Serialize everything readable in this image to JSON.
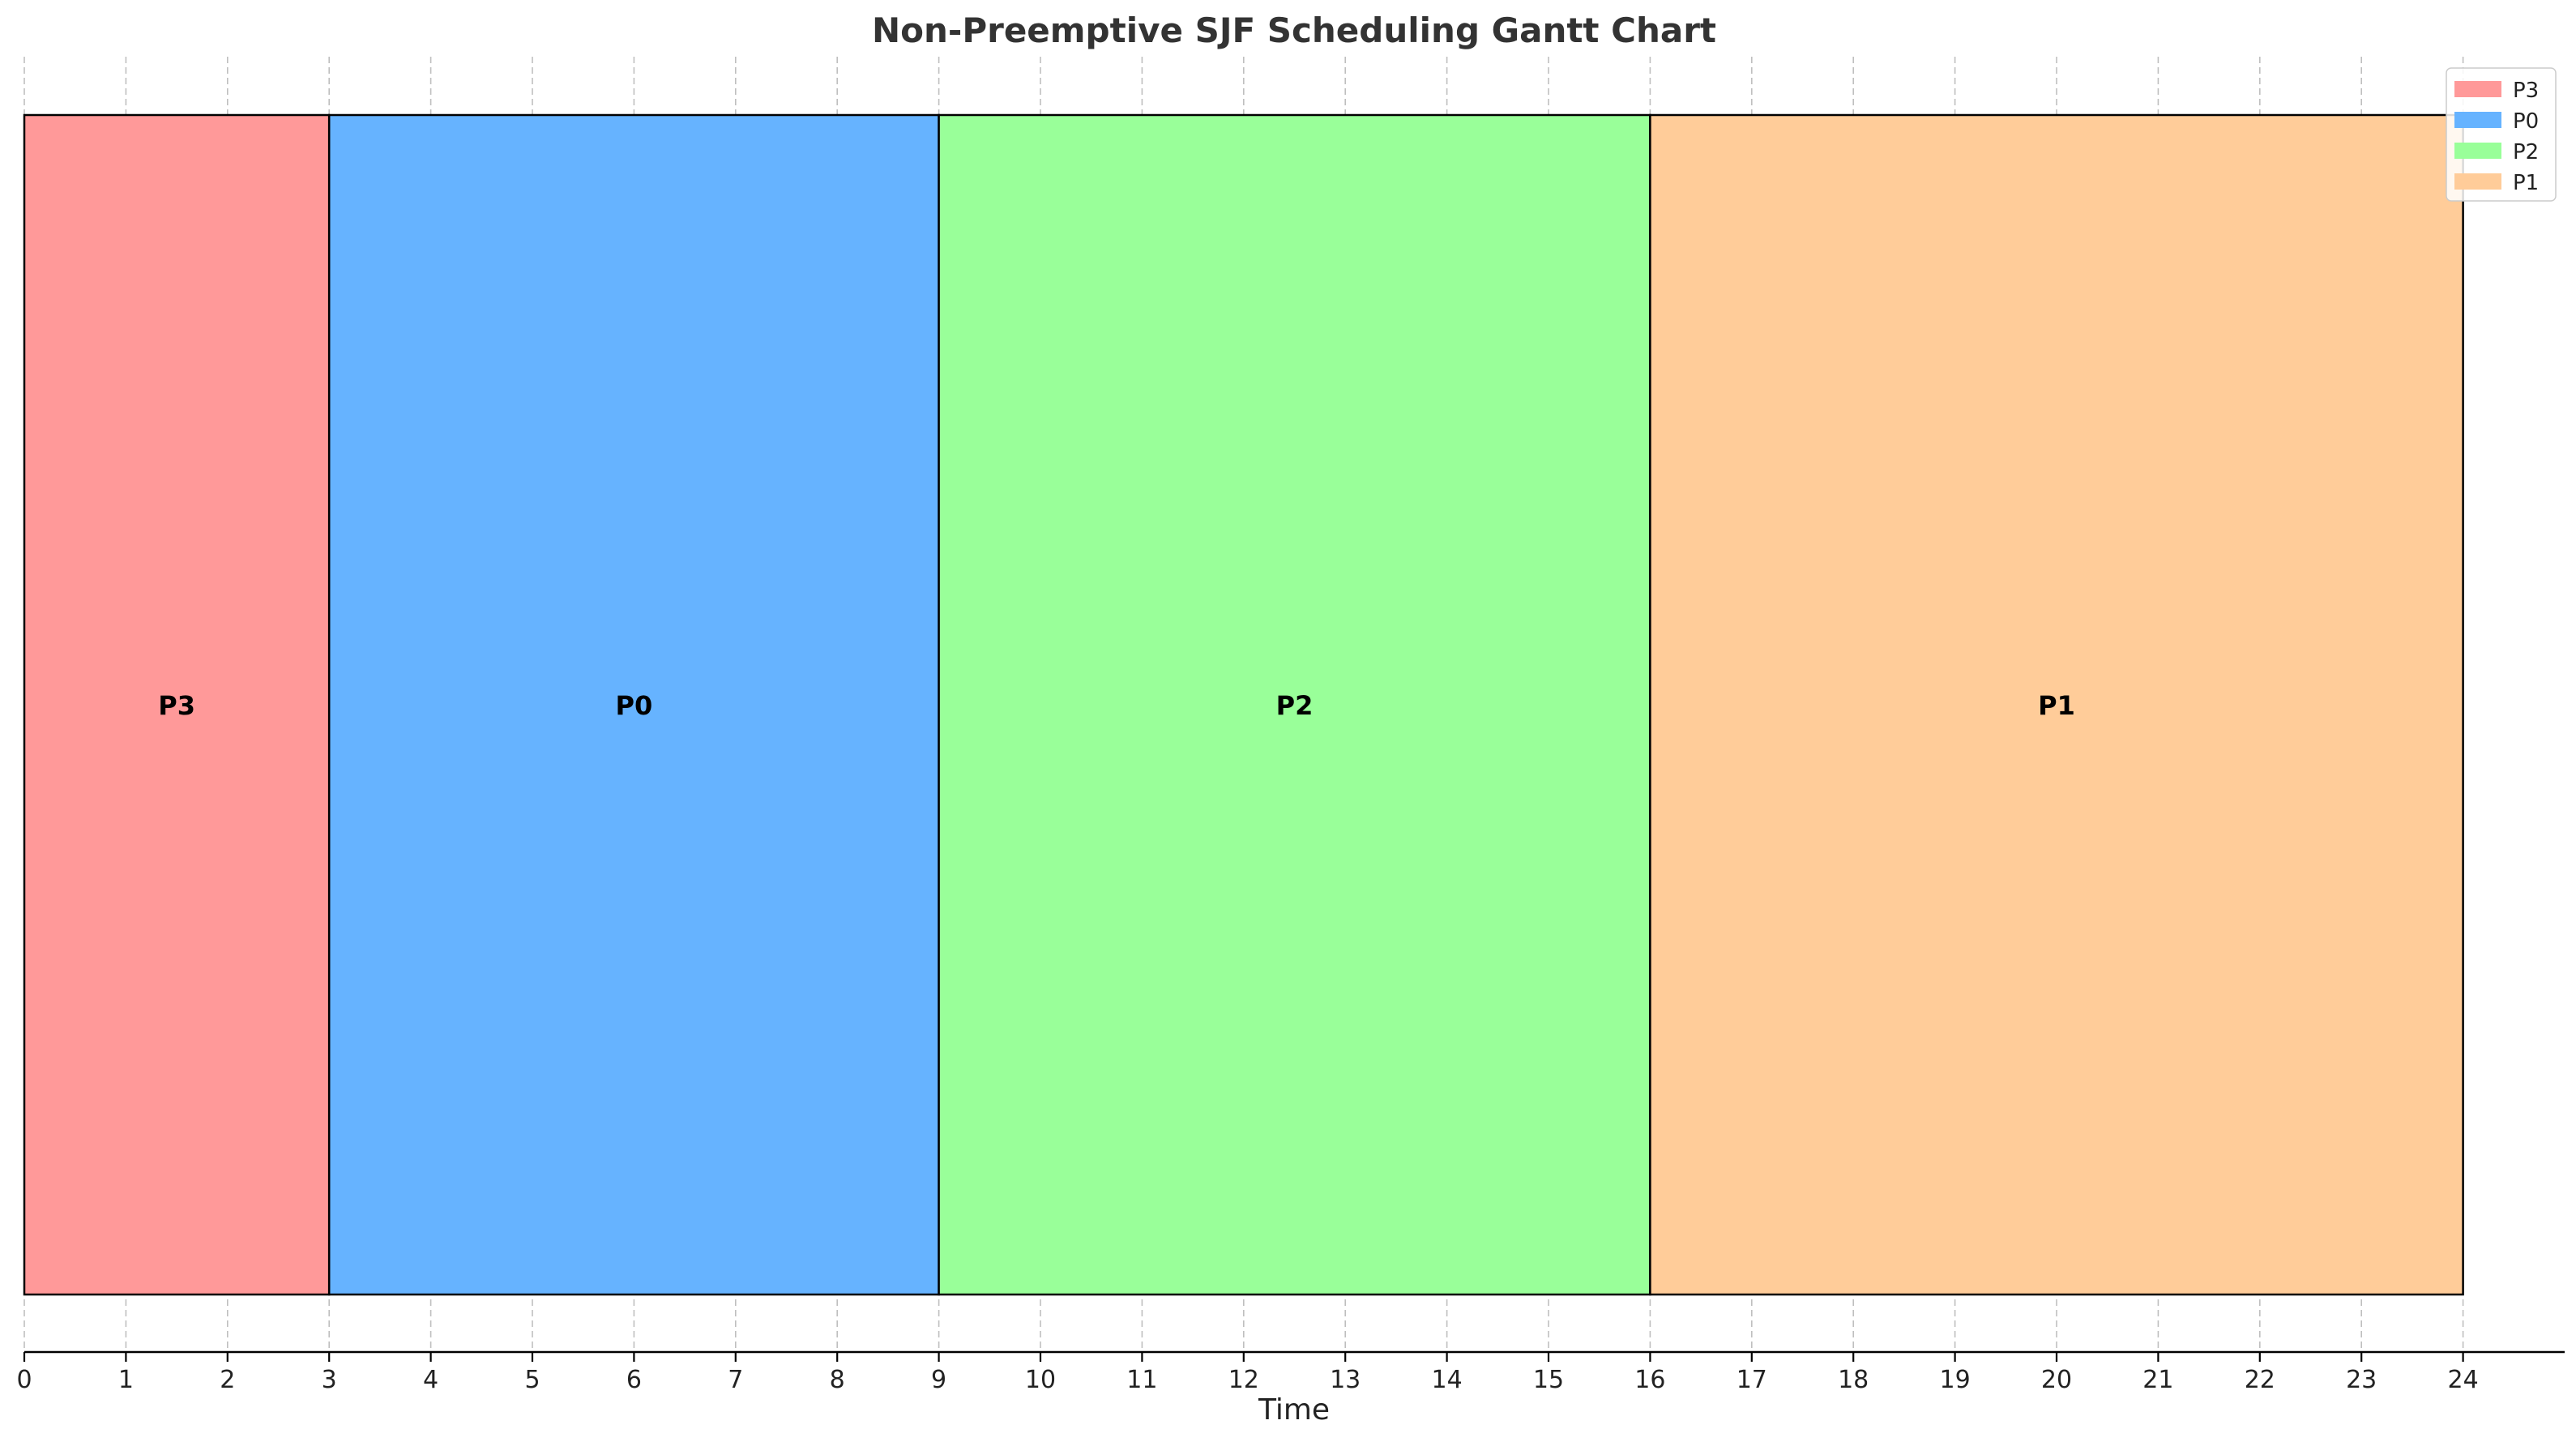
{
  "chart_data": {
    "type": "gantt",
    "title": "Non-Preemptive SJF Scheduling Gantt Chart",
    "xlabel": "Time",
    "xlim": [
      0,
      25
    ],
    "x_ticks": [
      0,
      1,
      2,
      3,
      4,
      5,
      6,
      7,
      8,
      9,
      10,
      11,
      12,
      13,
      14,
      15,
      16,
      17,
      18,
      19,
      20,
      21,
      22,
      23,
      24
    ],
    "grid": "vertical-dashed",
    "legend_placement": "top-right",
    "tasks": [
      {
        "name": "P3",
        "start": 0,
        "end": 3,
        "color": "#ff9999"
      },
      {
        "name": "P0",
        "start": 3,
        "end": 9,
        "color": "#66b3ff"
      },
      {
        "name": "P2",
        "start": 9,
        "end": 16,
        "color": "#99ff99"
      },
      {
        "name": "P1",
        "start": 16,
        "end": 24,
        "color": "#ffcc99"
      }
    ]
  }
}
